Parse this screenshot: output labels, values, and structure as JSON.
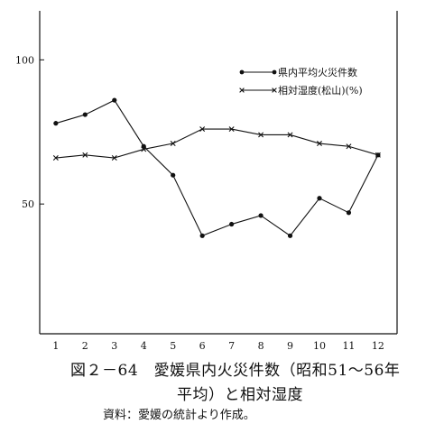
{
  "caption": {
    "line1": "図２－64　愛媛県内火災件数（昭和51～56年",
    "line2": "平均）と相対湿度",
    "source": "資料：愛媛の統計より作成。"
  },
  "chart_data": {
    "type": "line",
    "x": [
      1,
      2,
      3,
      4,
      5,
      6,
      7,
      8,
      9,
      10,
      11,
      12
    ],
    "x_tick_labels": [
      "1",
      "2",
      "3",
      "4",
      "5",
      "6",
      "7",
      "8",
      "9",
      "10",
      "11",
      "12"
    ],
    "y_tick_labels": [
      "100",
      "50"
    ],
    "y_ticks": [
      100,
      50
    ],
    "ylim": [
      5,
      117
    ],
    "xlim": [
      0.45,
      12.65
    ],
    "grid": false,
    "legend_position": "top-right",
    "series": [
      {
        "name": "県内平均火災件数",
        "marker": "dot",
        "values": [
          78,
          81,
          86,
          70,
          60,
          39,
          43,
          46,
          39,
          52,
          47,
          67
        ]
      },
      {
        "name": "相対湿度(松山)(%)",
        "marker": "x",
        "values": [
          66,
          67,
          66,
          69,
          71,
          76,
          76,
          74,
          74,
          71,
          70,
          67
        ]
      }
    ],
    "colors": {
      "ink": "#111111",
      "background": "#ffffff"
    }
  }
}
